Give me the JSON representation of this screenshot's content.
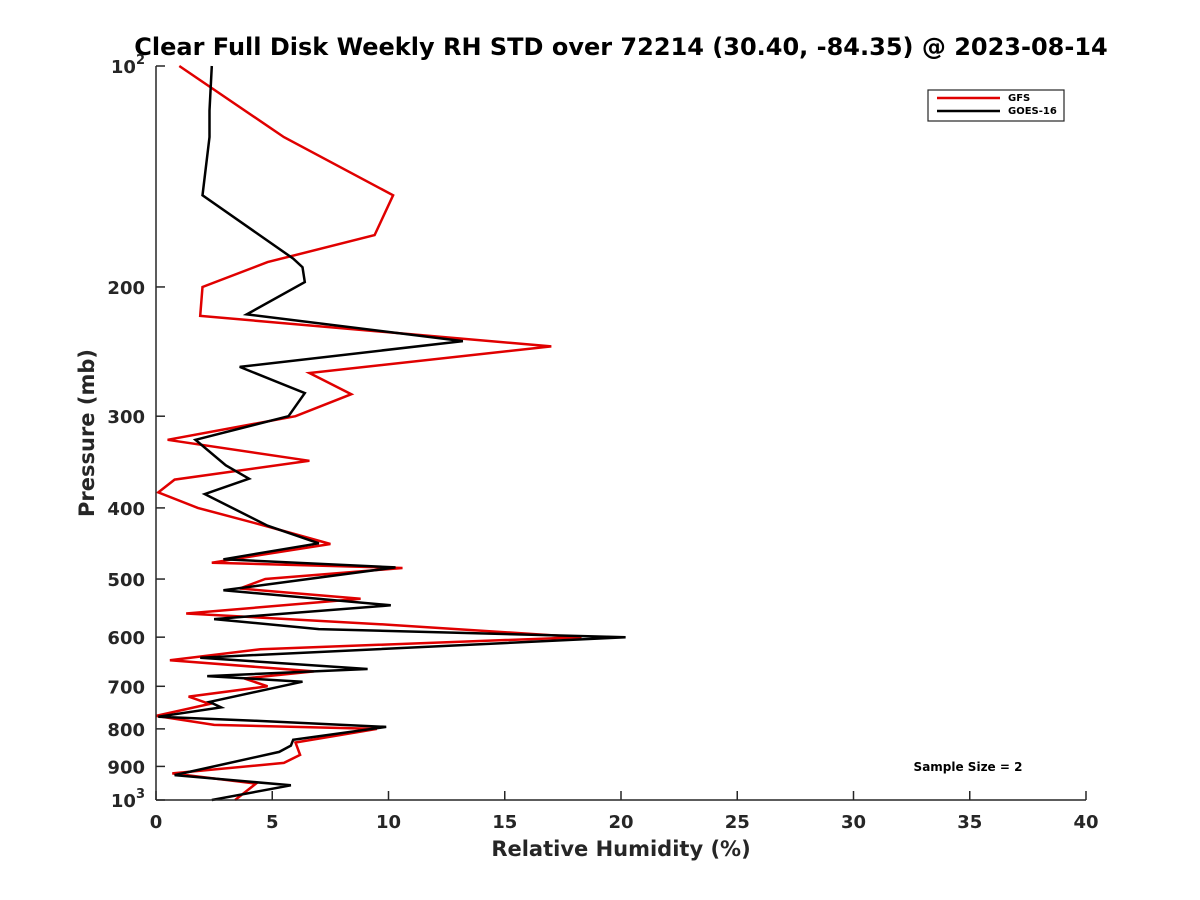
{
  "chart_data": {
    "type": "line",
    "title": "Clear Full Disk Weekly RH STD over 72214 (30.40, -84.35) @ 2023-08-14",
    "xlabel": "Relative Humidity (%)",
    "ylabel": "Pressure (mb)",
    "xlim": [
      0,
      40
    ],
    "ylim": [
      100,
      1000
    ],
    "y_scale": "log",
    "y_reversed": true,
    "x_ticks": [
      0,
      5,
      10,
      15,
      20,
      25,
      30,
      35,
      40
    ],
    "x_tick_labels": [
      "0",
      "5",
      "10",
      "15",
      "20",
      "25",
      "30",
      "35",
      "40"
    ],
    "y_ticks": [
      100,
      200,
      300,
      400,
      500,
      600,
      700,
      800,
      900,
      1000
    ],
    "y_tick_labels": [
      {
        "base": "10",
        "exp": "2"
      },
      {
        "base": "200",
        "exp": ""
      },
      {
        "base": "300",
        "exp": ""
      },
      {
        "base": "400",
        "exp": ""
      },
      {
        "base": "500",
        "exp": ""
      },
      {
        "base": "600",
        "exp": ""
      },
      {
        "base": "700",
        "exp": ""
      },
      {
        "base": "800",
        "exp": ""
      },
      {
        "base": "900",
        "exp": ""
      },
      {
        "base": "10",
        "exp": "3"
      }
    ],
    "legend_position": "top-right",
    "annotation": "Sample Size = 2",
    "series": [
      {
        "name": "GFS",
        "color": "#e00000",
        "points": [
          [
            1.0,
            100
          ],
          [
            5.5,
            125
          ],
          [
            10.2,
            150
          ],
          [
            9.4,
            170
          ],
          [
            4.8,
            185
          ],
          [
            2.0,
            200
          ],
          [
            1.9,
            219
          ],
          [
            17.0,
            241
          ],
          [
            6.6,
            262
          ],
          [
            8.4,
            280
          ],
          [
            6.0,
            300
          ],
          [
            0.5,
            323
          ],
          [
            6.6,
            345
          ],
          [
            0.8,
            366
          ],
          [
            0.1,
            381
          ],
          [
            1.8,
            400
          ],
          [
            4.8,
            424
          ],
          [
            7.5,
            448
          ],
          [
            2.4,
            475
          ],
          [
            10.6,
            483
          ],
          [
            4.7,
            500
          ],
          [
            3.6,
            515
          ],
          [
            8.8,
            532
          ],
          [
            1.3,
            557
          ],
          [
            10.0,
            577
          ],
          [
            18.3,
            600
          ],
          [
            4.5,
            623
          ],
          [
            0.6,
            645
          ],
          [
            6.8,
            668
          ],
          [
            3.8,
            683
          ],
          [
            4.8,
            700
          ],
          [
            1.4,
            723
          ],
          [
            2.3,
            740
          ],
          [
            0.0,
            768
          ],
          [
            2.5,
            790
          ],
          [
            9.5,
            800
          ],
          [
            6.0,
            835
          ],
          [
            6.2,
            868
          ],
          [
            5.5,
            890
          ],
          [
            0.7,
            920
          ],
          [
            4.3,
            950
          ],
          [
            3.4,
            1000
          ]
        ]
      },
      {
        "name": "GOES-16",
        "color": "#000000",
        "points": [
          [
            2.4,
            100
          ],
          [
            2.3,
            115
          ],
          [
            2.3,
            125
          ],
          [
            2.0,
            150
          ],
          [
            5.9,
            183
          ],
          [
            6.3,
            188
          ],
          [
            6.4,
            197
          ],
          [
            3.9,
            218
          ],
          [
            13.2,
            237
          ],
          [
            3.6,
            257
          ],
          [
            6.4,
            279
          ],
          [
            5.7,
            300
          ],
          [
            1.7,
            323
          ],
          [
            3.0,
            350
          ],
          [
            4.0,
            365
          ],
          [
            2.1,
            383
          ],
          [
            4.8,
            423
          ],
          [
            7.0,
            447
          ],
          [
            2.9,
            470
          ],
          [
            10.3,
            482
          ],
          [
            2.9,
            518
          ],
          [
            10.1,
            543
          ],
          [
            2.5,
            567
          ],
          [
            7.0,
            585
          ],
          [
            20.2,
            600
          ],
          [
            1.9,
            640
          ],
          [
            9.1,
            663
          ],
          [
            2.2,
            678
          ],
          [
            6.3,
            690
          ],
          [
            2.3,
            735
          ],
          [
            2.8,
            748
          ],
          [
            0.1,
            770
          ],
          [
            4.3,
            780
          ],
          [
            9.9,
            795
          ],
          [
            5.9,
            828
          ],
          [
            5.8,
            843
          ],
          [
            5.3,
            860
          ],
          [
            0.8,
            925
          ],
          [
            5.8,
            955
          ],
          [
            2.4,
            1000
          ]
        ]
      }
    ]
  }
}
